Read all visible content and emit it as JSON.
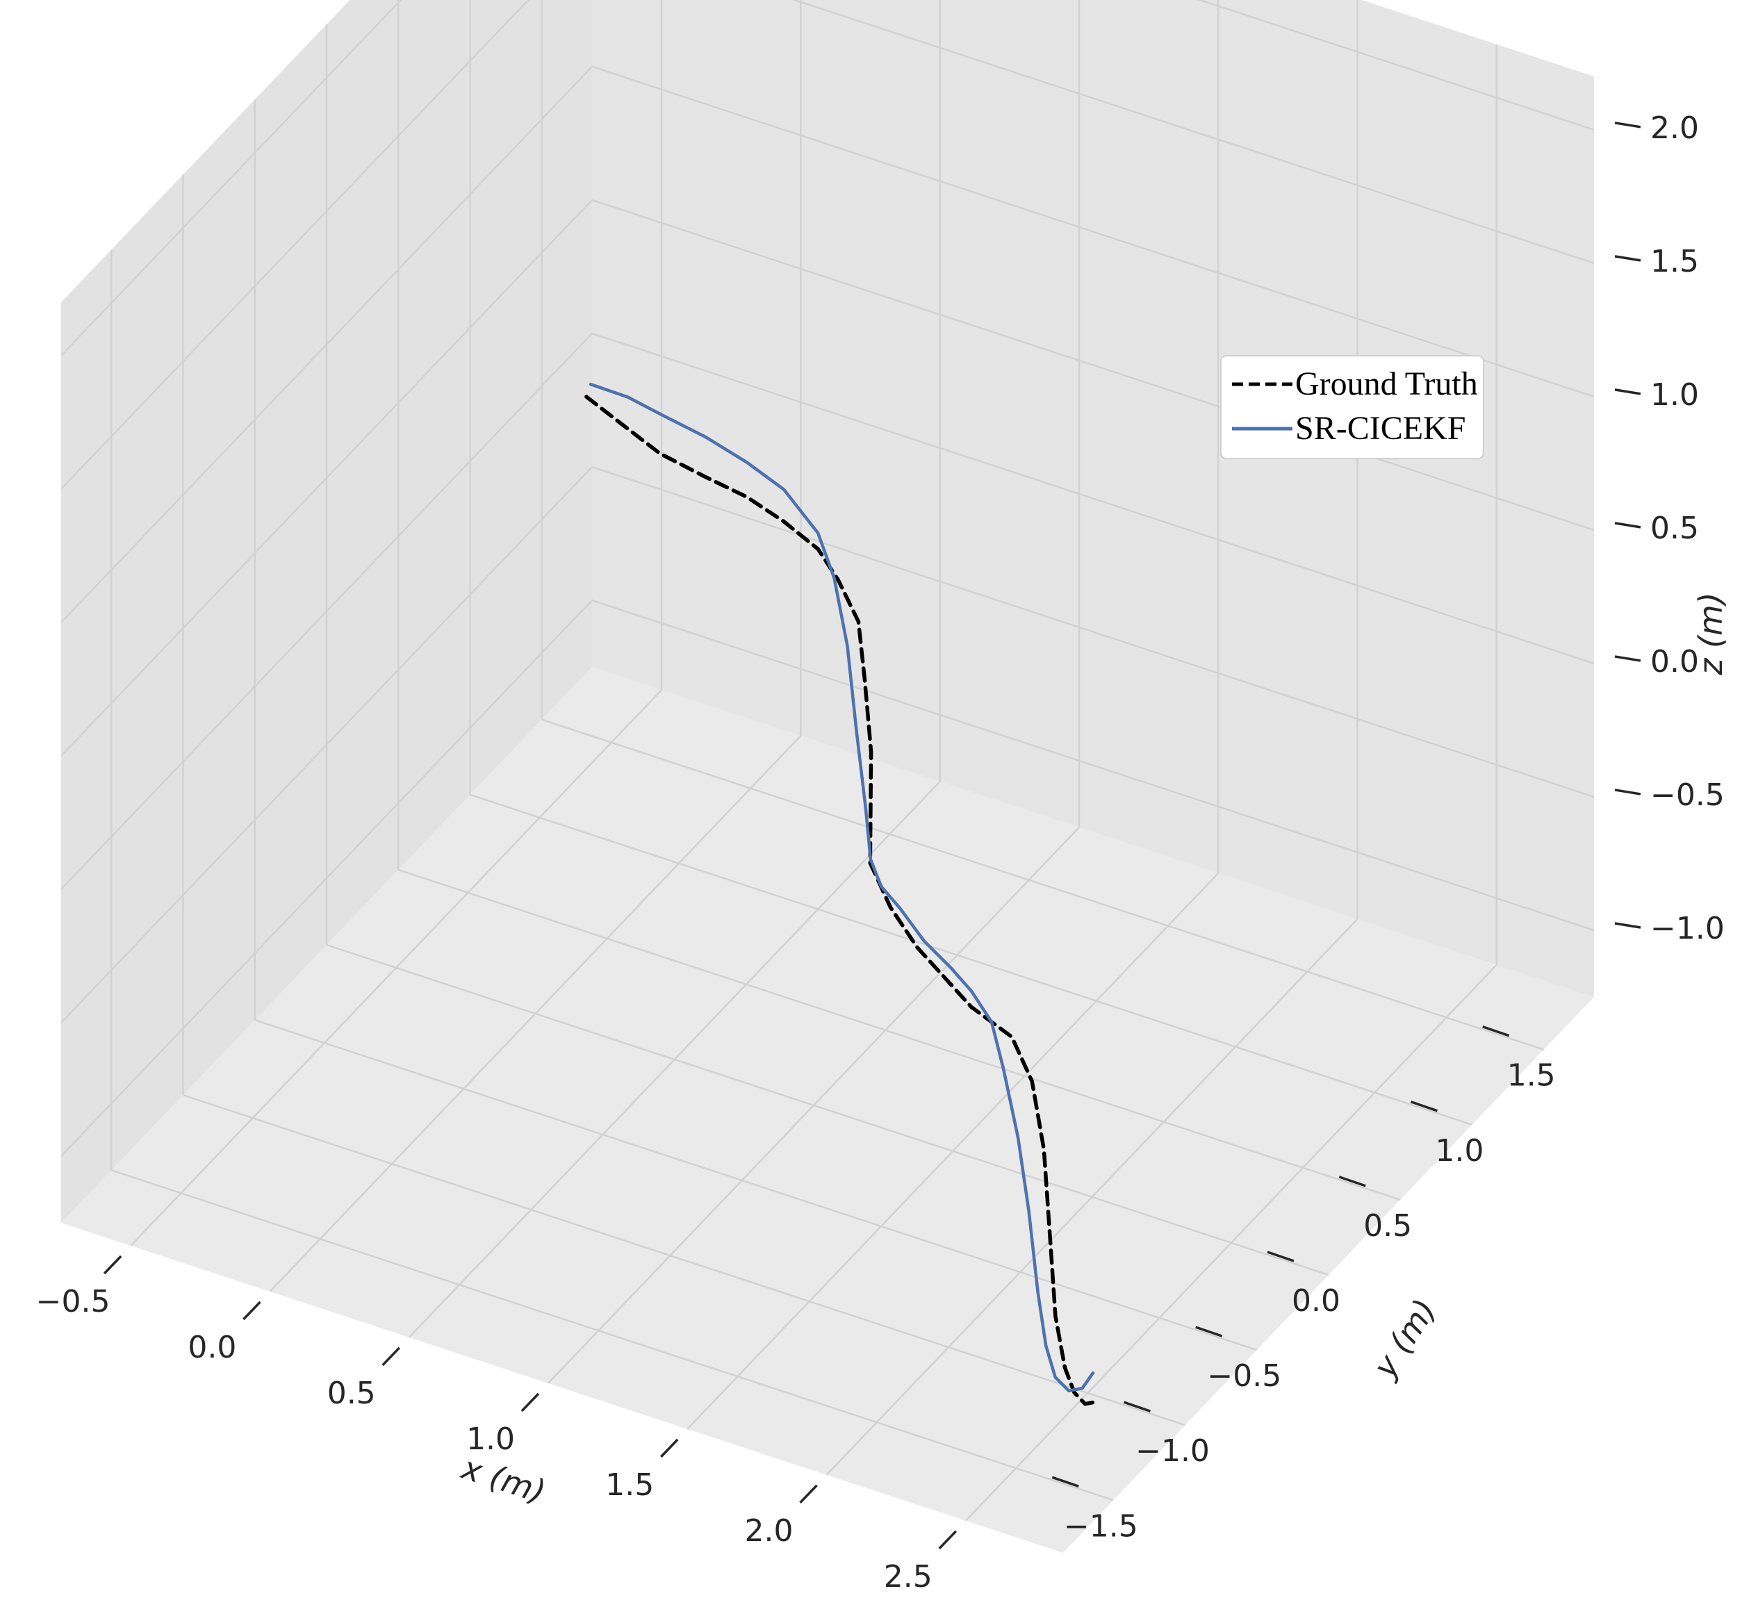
{
  "chart_data": {
    "type": "line",
    "projection": "3d",
    "title": "",
    "xlabel": "x (m)",
    "ylabel": "y (m)",
    "zlabel": "z (m)",
    "xlim": [
      -0.75,
      2.85
    ],
    "ylim": [
      -1.85,
      1.85
    ],
    "zlim": [
      -1.25,
      2.2
    ],
    "x_ticks": [
      -0.5,
      0.0,
      0.5,
      1.0,
      1.5,
      2.0,
      2.5
    ],
    "x_tick_labels": [
      "−0.5",
      "0.0",
      "0.5",
      "1.0",
      "1.5",
      "2.0",
      "2.5"
    ],
    "y_ticks": [
      -1.5,
      -1.0,
      -0.5,
      0.0,
      0.5,
      1.0,
      1.5
    ],
    "y_tick_labels": [
      "−1.5",
      "−1.0",
      "−0.5",
      "0.0",
      "0.5",
      "1.0",
      "1.5"
    ],
    "z_ticks": [
      -1.0,
      -0.5,
      0.0,
      0.5,
      1.0,
      1.5,
      2.0
    ],
    "z_tick_labels": [
      "−1.0",
      "−0.5",
      "0.0",
      "0.5",
      "1.0",
      "1.5",
      "2.0"
    ],
    "grid": true,
    "legend": {
      "position": "upper-right"
    },
    "series": [
      {
        "name": "Ground Truth",
        "style": "dashed",
        "color": "#000000",
        "points": [
          [
            -0.6,
            1.52,
            0.0
          ],
          [
            -0.45,
            1.5,
            -0.05
          ],
          [
            -0.3,
            1.45,
            -0.07
          ],
          [
            -0.1,
            1.38,
            -0.05
          ],
          [
            0.1,
            1.28,
            0.0
          ],
          [
            0.3,
            1.15,
            0.05
          ],
          [
            0.5,
            1.0,
            0.1
          ],
          [
            0.65,
            0.85,
            0.12
          ],
          [
            0.8,
            0.7,
            0.1
          ],
          [
            0.9,
            0.55,
            0.0
          ],
          [
            1.0,
            0.4,
            -0.15
          ],
          [
            1.05,
            0.3,
            -0.3
          ],
          [
            1.1,
            0.2,
            -0.42
          ],
          [
            1.25,
            0.05,
            -0.45
          ],
          [
            1.45,
            -0.15,
            -0.42
          ],
          [
            1.65,
            -0.35,
            -0.35
          ],
          [
            1.85,
            -0.55,
            -0.28
          ],
          [
            2.0,
            -0.7,
            -0.2
          ],
          [
            2.15,
            -0.85,
            -0.12
          ],
          [
            2.3,
            -1.0,
            -0.15
          ],
          [
            2.42,
            -1.15,
            -0.28
          ],
          [
            2.52,
            -1.3,
            -0.5
          ],
          [
            2.58,
            -1.38,
            -0.72
          ],
          [
            2.65,
            -1.45,
            -0.85
          ],
          [
            2.72,
            -1.52,
            -0.88
          ],
          [
            2.8,
            -1.6,
            -0.85
          ],
          [
            2.9,
            -1.7,
            -0.75
          ]
        ]
      },
      {
        "name": "SR-CICEKF",
        "style": "solid",
        "color": "#4c72b0",
        "points": [
          [
            -0.6,
            1.55,
            0.03
          ],
          [
            -0.45,
            1.52,
            0.05
          ],
          [
            -0.3,
            1.46,
            0.07
          ],
          [
            -0.1,
            1.38,
            0.1
          ],
          [
            0.1,
            1.28,
            0.13
          ],
          [
            0.3,
            1.15,
            0.17
          ],
          [
            0.5,
            1.0,
            0.16
          ],
          [
            0.62,
            0.88,
            0.1
          ],
          [
            0.75,
            0.72,
            -0.02
          ],
          [
            0.87,
            0.55,
            -0.2
          ],
          [
            0.97,
            0.42,
            -0.38
          ],
          [
            1.05,
            0.3,
            -0.48
          ],
          [
            1.15,
            0.18,
            -0.48
          ],
          [
            1.3,
            0.02,
            -0.42
          ],
          [
            1.5,
            -0.2,
            -0.35
          ],
          [
            1.7,
            -0.4,
            -0.27
          ],
          [
            1.85,
            -0.55,
            -0.22
          ],
          [
            2.0,
            -0.7,
            -0.2
          ],
          [
            2.12,
            -0.85,
            -0.25
          ],
          [
            2.25,
            -1.0,
            -0.38
          ],
          [
            2.35,
            -1.12,
            -0.55
          ],
          [
            2.45,
            -1.25,
            -0.75
          ],
          [
            2.52,
            -1.33,
            -0.88
          ],
          [
            2.6,
            -1.42,
            -0.92
          ],
          [
            2.7,
            -1.52,
            -0.88
          ],
          [
            2.8,
            -1.62,
            -0.78
          ],
          [
            2.88,
            -1.7,
            -0.65
          ]
        ]
      }
    ]
  },
  "colors": {
    "pane_back": "#e5e5e5",
    "pane_side": "#e2e2e2",
    "pane_floor": "#eaeaea",
    "grid": "#d2d2d2",
    "tick": "#262626"
  }
}
